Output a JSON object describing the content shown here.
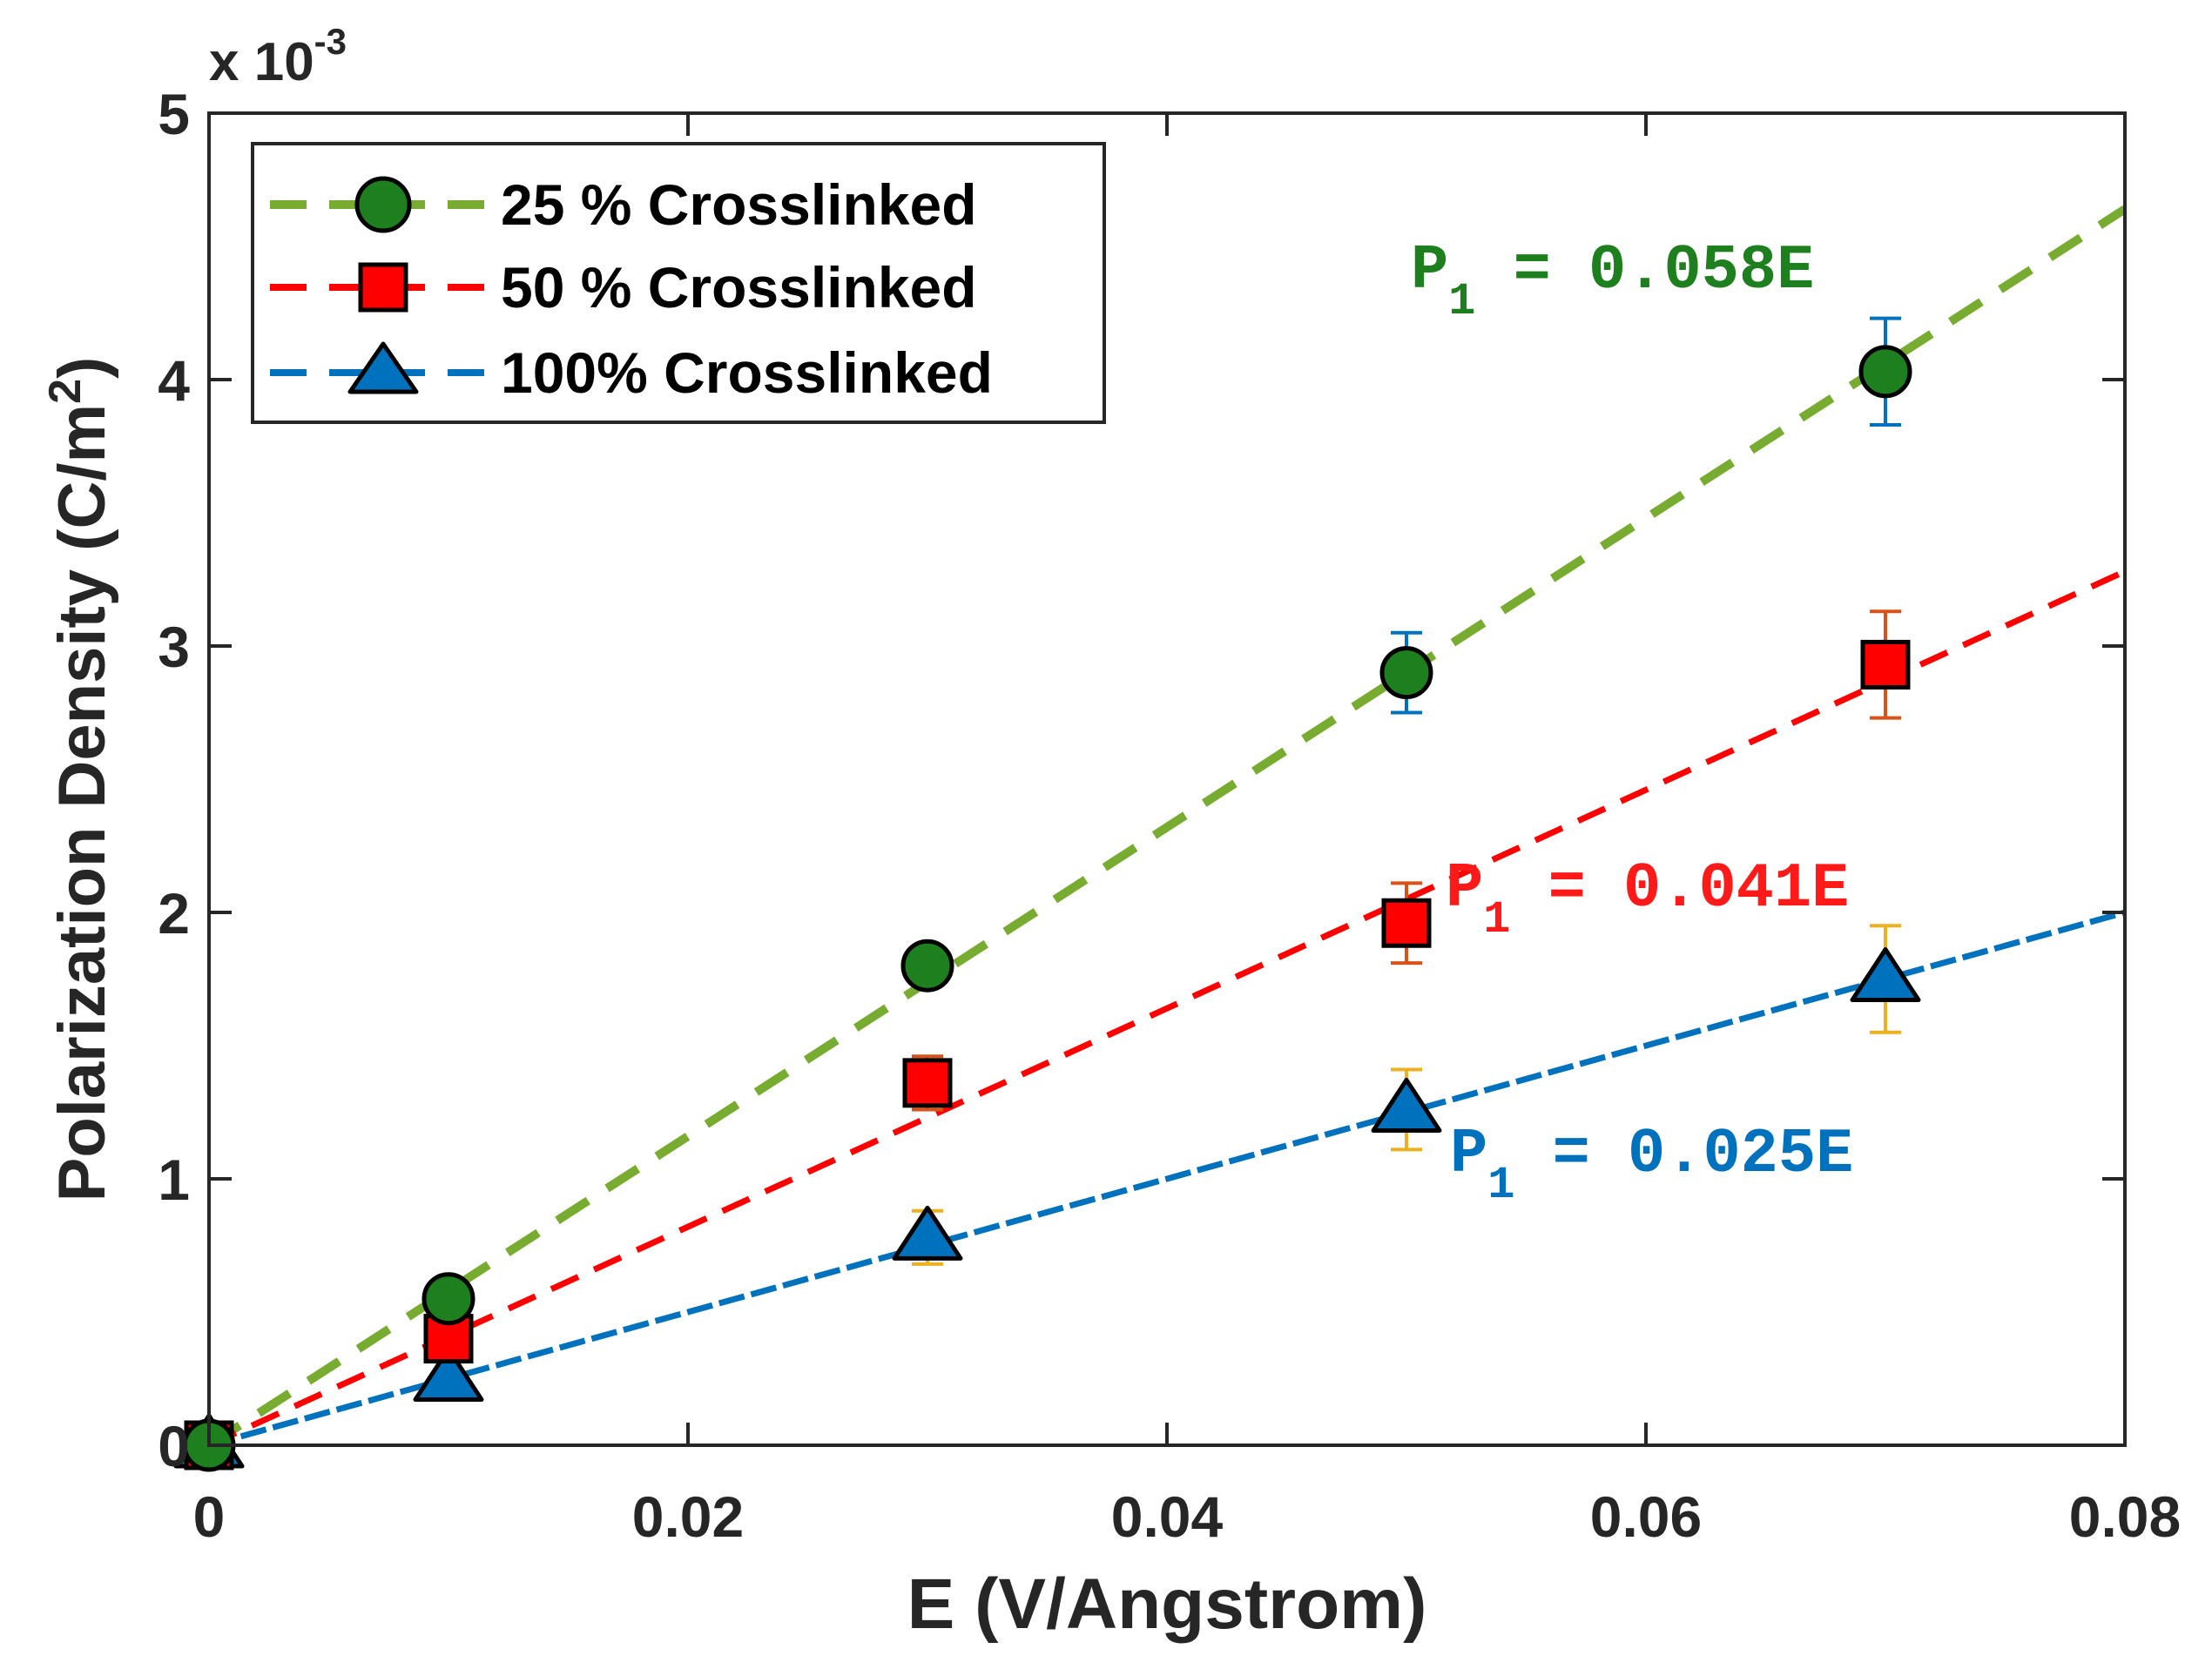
{
  "chart_data": {
    "type": "scatter",
    "title": "",
    "xlabel": "E (V/Angstrom)",
    "ylabel": "Polarization Density (C/m",
    "ylabel_sup": "2",
    "ylabel_end": ")",
    "y_multiplier": {
      "base": "x 10",
      "exp": "-3"
    },
    "xlim": [
      0,
      0.08
    ],
    "ylim": [
      0,
      5
    ],
    "xticks": [
      0,
      0.02,
      0.04,
      0.06,
      0.08
    ],
    "xtick_labels": [
      "0",
      "0.02",
      "0.04",
      "0.06",
      "0.08"
    ],
    "yticks": [
      0,
      1,
      2,
      3,
      4,
      5
    ],
    "ytick_labels": [
      "0",
      "1",
      "2",
      "3",
      "4",
      "5"
    ],
    "grid": false,
    "legend_position": "top-left",
    "series": [
      {
        "name": "25 % Crosslinked",
        "marker": "circle",
        "marker_color": "#1e7f1e",
        "line_color": "#77ac30",
        "errorbar_color": "#0072bd",
        "x": [
          0,
          0.01,
          0.03,
          0.05,
          0.07
        ],
        "y": [
          0,
          0.55,
          1.8,
          2.9,
          4.03
        ],
        "err": [
          0.02,
          0.04,
          0.07,
          0.15,
          0.2
        ],
        "fit_slope": 0.058,
        "fit_label_main": "P",
        "fit_label_sub": "1",
        "fit_label_rest": " = 0.058E",
        "fit_label_color": "#1e7f1e"
      },
      {
        "name": "50 % Crosslinked",
        "marker": "square",
        "marker_color": "#ff0000",
        "line_color": "#ff0000",
        "errorbar_color": "#d95319",
        "x": [
          0,
          0.01,
          0.03,
          0.05,
          0.07
        ],
        "y": [
          0,
          0.4,
          1.36,
          1.96,
          2.93
        ],
        "err": [
          0.02,
          0.05,
          0.1,
          0.15,
          0.2
        ],
        "fit_slope": 0.041,
        "fit_label_main": "P",
        "fit_label_sub": "1",
        "fit_label_rest": " = 0.041E",
        "fit_label_color": "#ff1a1a"
      },
      {
        "name": "100% Crosslinked",
        "marker": "triangle",
        "marker_color": "#0072bd",
        "line_color": "#0072bd",
        "errorbar_color": "#edb120",
        "x": [
          0,
          0.01,
          0.03,
          0.05,
          0.07
        ],
        "y": [
          0,
          0.25,
          0.78,
          1.26,
          1.75
        ],
        "err": [
          0.02,
          0.08,
          0.1,
          0.15,
          0.2
        ],
        "fit_slope": 0.025,
        "fit_label_main": "P",
        "fit_label_sub": "1",
        "fit_label_rest": " = 0.025E",
        "fit_label_color": "#0072bd"
      }
    ]
  }
}
